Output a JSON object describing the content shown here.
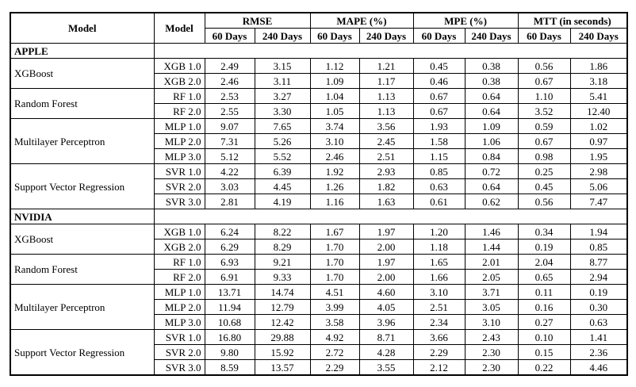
{
  "table": {
    "header": {
      "model": "Model",
      "variant": "Model",
      "metrics": [
        "RMSE",
        "MAPE (%)",
        "MPE (%)",
        "MTT (in seconds)"
      ],
      "periods": [
        "60 Days",
        "240 Days",
        "60 Days",
        "240 Days",
        "60 Days",
        "240 Days",
        "60 Days",
        "240 Days"
      ]
    },
    "sections": [
      {
        "name": "APPLE",
        "groups": [
          {
            "model": "XGBoost",
            "rows": [
              {
                "variant": "XGB 1.0",
                "values": [
                  "2.49",
                  "3.15",
                  "1.12",
                  "1.21",
                  "0.45",
                  "0.38",
                  "0.56",
                  "1.86"
                ]
              },
              {
                "variant": "XGB 2.0",
                "values": [
                  "2.46",
                  "3.11",
                  "1.09",
                  "1.17",
                  "0.46",
                  "0.38",
                  "0.67",
                  "3.18"
                ]
              }
            ]
          },
          {
            "model": "Random Forest",
            "rows": [
              {
                "variant": "RF 1.0",
                "values": [
                  "2.53",
                  "3.27",
                  "1.04",
                  "1.13",
                  "0.67",
                  "0.64",
                  "1.10",
                  "5.41"
                ]
              },
              {
                "variant": "RF 2.0",
                "values": [
                  "2.55",
                  "3.30",
                  "1.05",
                  "1.13",
                  "0.67",
                  "0.64",
                  "3.52",
                  "12.40"
                ]
              }
            ]
          },
          {
            "model": "Multilayer Perceptron",
            "rows": [
              {
                "variant": "MLP 1.0",
                "values": [
                  "9.07",
                  "7.65",
                  "3.74",
                  "3.56",
                  "1.93",
                  "1.09",
                  "0.59",
                  "1.02"
                ]
              },
              {
                "variant": "MLP 2.0",
                "values": [
                  "7.31",
                  "5.26",
                  "3.10",
                  "2.45",
                  "1.58",
                  "1.06",
                  "0.67",
                  "0.97"
                ]
              },
              {
                "variant": "MLP 3.0",
                "values": [
                  "5.12",
                  "5.52",
                  "2.46",
                  "2.51",
                  "1.15",
                  "0.84",
                  "0.98",
                  "1.95"
                ]
              }
            ]
          },
          {
            "model": "Support Vector Regression",
            "rows": [
              {
                "variant": "SVR 1.0",
                "values": [
                  "4.22",
                  "6.39",
                  "1.92",
                  "2.93",
                  "0.85",
                  "0.72",
                  "0.25",
                  "2.98"
                ]
              },
              {
                "variant": "SVR 2.0",
                "values": [
                  "3.03",
                  "4.45",
                  "1.26",
                  "1.82",
                  "0.63",
                  "0.64",
                  "0.45",
                  "5.06"
                ]
              },
              {
                "variant": "SVR 3.0",
                "values": [
                  "2.81",
                  "4.19",
                  "1.16",
                  "1.63",
                  "0.61",
                  "0.62",
                  "0.56",
                  "7.47"
                ]
              }
            ]
          }
        ]
      },
      {
        "name": "NVIDIA",
        "groups": [
          {
            "model": "XGBoost",
            "rows": [
              {
                "variant": "XGB 1.0",
                "values": [
                  "6.24",
                  "8.22",
                  "1.67",
                  "1.97",
                  "1.20",
                  "1.46",
                  "0.34",
                  "1.94"
                ]
              },
              {
                "variant": "XGB 2.0",
                "values": [
                  "6.29",
                  "8.29",
                  "1.70",
                  "2.00",
                  "1.18",
                  "1.44",
                  "0.19",
                  "0.85"
                ]
              }
            ]
          },
          {
            "model": "Random Forest",
            "rows": [
              {
                "variant": "RF 1.0",
                "values": [
                  "6.93",
                  "9.21",
                  "1.70",
                  "1.97",
                  "1.65",
                  "2.01",
                  "2.04",
                  "8.77"
                ]
              },
              {
                "variant": "RF 2.0",
                "values": [
                  "6.91",
                  "9.33",
                  "1.70",
                  "2.00",
                  "1.66",
                  "2.05",
                  "0.65",
                  "2.94"
                ]
              }
            ]
          },
          {
            "model": "Multilayer Perceptron",
            "rows": [
              {
                "variant": "MLP 1.0",
                "values": [
                  "13.71",
                  "14.74",
                  "4.51",
                  "4.60",
                  "3.10",
                  "3.71",
                  "0.11",
                  "0.19"
                ]
              },
              {
                "variant": "MLP 2.0",
                "values": [
                  "11.94",
                  "12.79",
                  "3.99",
                  "4.05",
                  "2.51",
                  "3.05",
                  "0.16",
                  "0.30"
                ]
              },
              {
                "variant": "MLP 3.0",
                "values": [
                  "10.68",
                  "12.42",
                  "3.58",
                  "3.96",
                  "2.34",
                  "3.10",
                  "0.27",
                  "0.63"
                ]
              }
            ]
          },
          {
            "model": "Support Vector Regression",
            "rows": [
              {
                "variant": "SVR 1.0",
                "values": [
                  "16.80",
                  "29.88",
                  "4.92",
                  "8.71",
                  "3.66",
                  "2.43",
                  "0.10",
                  "1.41"
                ]
              },
              {
                "variant": "SVR 2.0",
                "values": [
                  "9.80",
                  "15.92",
                  "2.72",
                  "4.28",
                  "2.29",
                  "2.30",
                  "0.15",
                  "2.36"
                ]
              },
              {
                "variant": "SVR 3.0",
                "values": [
                  "8.59",
                  "13.57",
                  "2.29",
                  "3.55",
                  "2.12",
                  "2.30",
                  "0.22",
                  "4.46"
                ]
              }
            ]
          }
        ]
      }
    ]
  }
}
